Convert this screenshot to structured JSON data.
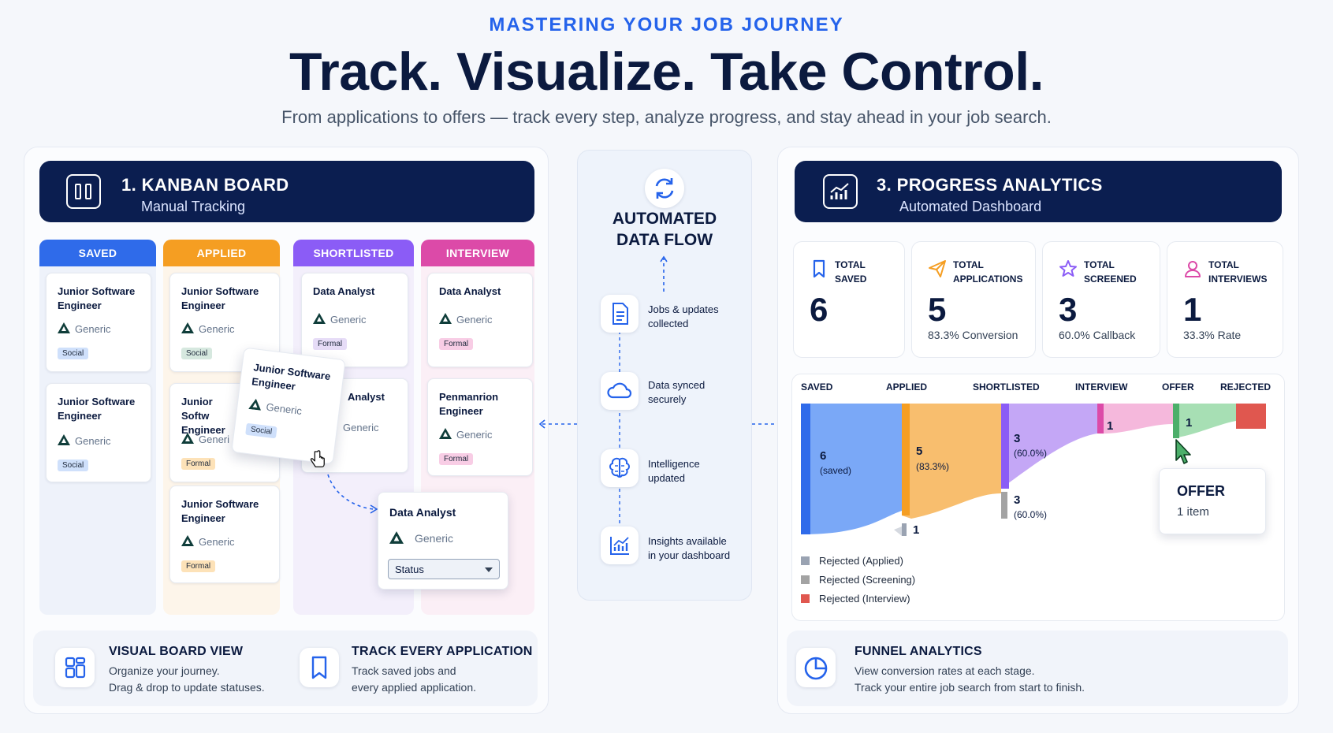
{
  "header": {
    "eyebrow": "MASTERING YOUR JOB JOURNEY",
    "headline": "Track. Visualize. Take Control.",
    "subline": "From applications to offers — track every step, analyze progress, and stay ahead in your job search."
  },
  "kanban": {
    "title": "1.  KANBAN BOARD",
    "subtitle": "Manual Tracking",
    "columns": [
      {
        "label": "SAVED",
        "color": "#2f6bea"
      },
      {
        "label": "APPLIED",
        "color": "#f59e22"
      },
      {
        "label": "SHORTLISTED",
        "color": "#8b5cf6"
      },
      {
        "label": "INTERVIEW",
        "color": "#dc4aa8"
      }
    ],
    "cards": {
      "s1": {
        "title": "Junior Software Engineer",
        "company": "Generic",
        "tag": "Social"
      },
      "s2": {
        "title": "Junior Software Engineer",
        "company": "Generic",
        "tag": "Social"
      },
      "a1": {
        "title": "Junior Software Engineer",
        "company": "Generic",
        "tag": "Social"
      },
      "a2": {
        "title": "Junior Softw Engineer",
        "company": "Generi",
        "tag": "Formal"
      },
      "a3": {
        "title": "Junior Software Engineer",
        "company": "Generic",
        "tag": "Formal"
      },
      "sh1": {
        "title": "Data Analyst",
        "company": "Generic",
        "tag": "Formal"
      },
      "sh2": {
        "title": "Analyst",
        "company": "Generic"
      },
      "i1": {
        "title": "Data Analyst",
        "company": "Generic",
        "tag": "Formal"
      },
      "i2": {
        "title": "Penmanrion Engineer",
        "company": "Generic",
        "tag": "Formal"
      },
      "drag": {
        "title": "Junior Software Engineer",
        "company": "Generic",
        "tag": "Social"
      },
      "status_card": {
        "title": "Data Analyst",
        "company": "Generic",
        "status_label": "Status"
      }
    }
  },
  "flow": {
    "title_line1": "AUTOMATED",
    "title_line2": "DATA FLOW",
    "steps": [
      {
        "line1": "Jobs & updates",
        "line2": "collected"
      },
      {
        "line1": "Data synced",
        "line2": "securely"
      },
      {
        "line1": "Intelligence",
        "line2": "updated"
      },
      {
        "line1": "Insights available",
        "line2": "in your dashboard"
      }
    ]
  },
  "analytics": {
    "title": "3.  PROGRESS ANALYTICS",
    "subtitle": "Automated Dashboard",
    "stats": [
      {
        "l1": "TOTAL",
        "l2": "SAVED",
        "value": "6",
        "sub": "",
        "color": "#2563eb"
      },
      {
        "l1": "TOTAL",
        "l2": "APPLICATIONS",
        "value": "5",
        "sub": "83.3% Conversion",
        "color": "#f59e22"
      },
      {
        "l1": "TOTAL",
        "l2": "SCREENED",
        "value": "3",
        "sub": "60.0% Callback",
        "color": "#8b5cf6"
      },
      {
        "l1": "TOTAL",
        "l2": "INTERVIEWS",
        "value": "1",
        "sub": "33.3% Rate",
        "color": "#dc4aa8"
      }
    ],
    "stages": [
      "SAVED",
      "APPLIED",
      "SHORTLISTED",
      "INTERVIEW",
      "OFFER",
      "REJECTED"
    ],
    "bands": {
      "saved": {
        "value": "6",
        "sub": "(saved)"
      },
      "applied": {
        "value": "5",
        "sub": "(83.3%)"
      },
      "shortlisted": {
        "value": "3",
        "sub": "(60.0%)"
      },
      "interview": {
        "value": "1"
      },
      "offer": {
        "value": "1"
      },
      "rej_applied": {
        "value": "1"
      },
      "rej_screen": {
        "value": "3",
        "sub": "(60.0%)"
      }
    },
    "tooltip": {
      "title": "OFFER",
      "sub": "1 item"
    },
    "legend": [
      {
        "label": "Rejected (Applied)",
        "color": "#9aa3b2"
      },
      {
        "label": "Rejected (Screening)",
        "color": "#a3a3a3"
      },
      {
        "label": "Rejected (Interview)",
        "color": "#e0574f"
      }
    ]
  },
  "features": {
    "board": {
      "title": "VISUAL BOARD VIEW",
      "d1": "Organize your journey.",
      "d2": "Drag & drop to update statuses."
    },
    "track": {
      "title": "TRACK EVERY APPLICATION",
      "d1": "Track saved jobs and",
      "d2": "every applied application."
    },
    "funnel": {
      "title": "FUNNEL ANALYTICS",
      "d1": "View conversion rates at each stage.",
      "d2": "Track your entire job search from start to finish."
    }
  }
}
